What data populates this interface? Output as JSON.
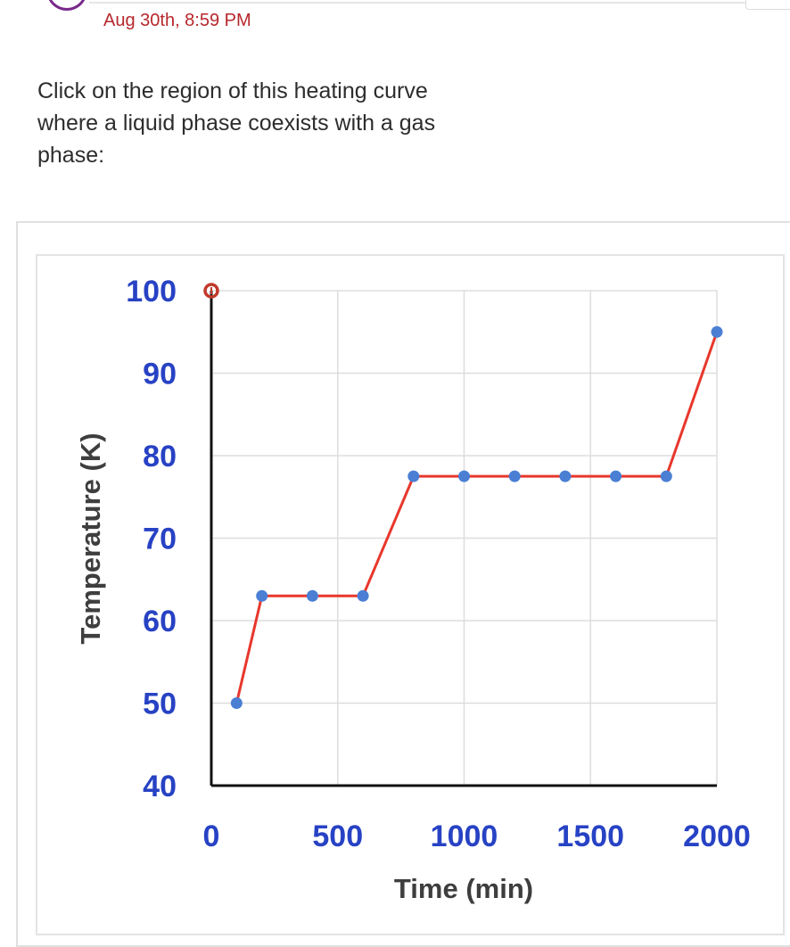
{
  "header": {
    "timestamp": "Aug 30th, 8:59 PM"
  },
  "question": {
    "text": "Click on the region of this heating curve where a liquid phase coexists with a gas phase:"
  },
  "colors": {
    "line": "#e8372c",
    "marker": "#4a7fd4",
    "tick_label": "#2742c4",
    "grid": "#dddddd",
    "axis": "#111111",
    "selection_marker": "#c0392b",
    "timestamp": "#b6272c"
  },
  "chart_data": {
    "type": "line",
    "title": "",
    "xlabel": "Time (min)",
    "ylabel": "Temperature (K)",
    "xlim": [
      0,
      2000
    ],
    "ylim": [
      40,
      100
    ],
    "x_ticks": [
      "0",
      "500",
      "1000",
      "1500",
      "2000"
    ],
    "y_ticks": [
      "100",
      "90",
      "80",
      "70",
      "60",
      "50",
      "40"
    ],
    "grid": true,
    "legend": "none",
    "series": [
      {
        "x": [
          100,
          200,
          400,
          600,
          800,
          1000,
          1200,
          1400,
          1600,
          1800,
          2000
        ],
        "y": [
          50,
          63,
          63,
          63,
          77.5,
          77.5,
          77.5,
          77.5,
          77.5,
          77.5,
          95
        ]
      }
    ],
    "selected_point": {
      "x": 0,
      "y": 100
    }
  }
}
